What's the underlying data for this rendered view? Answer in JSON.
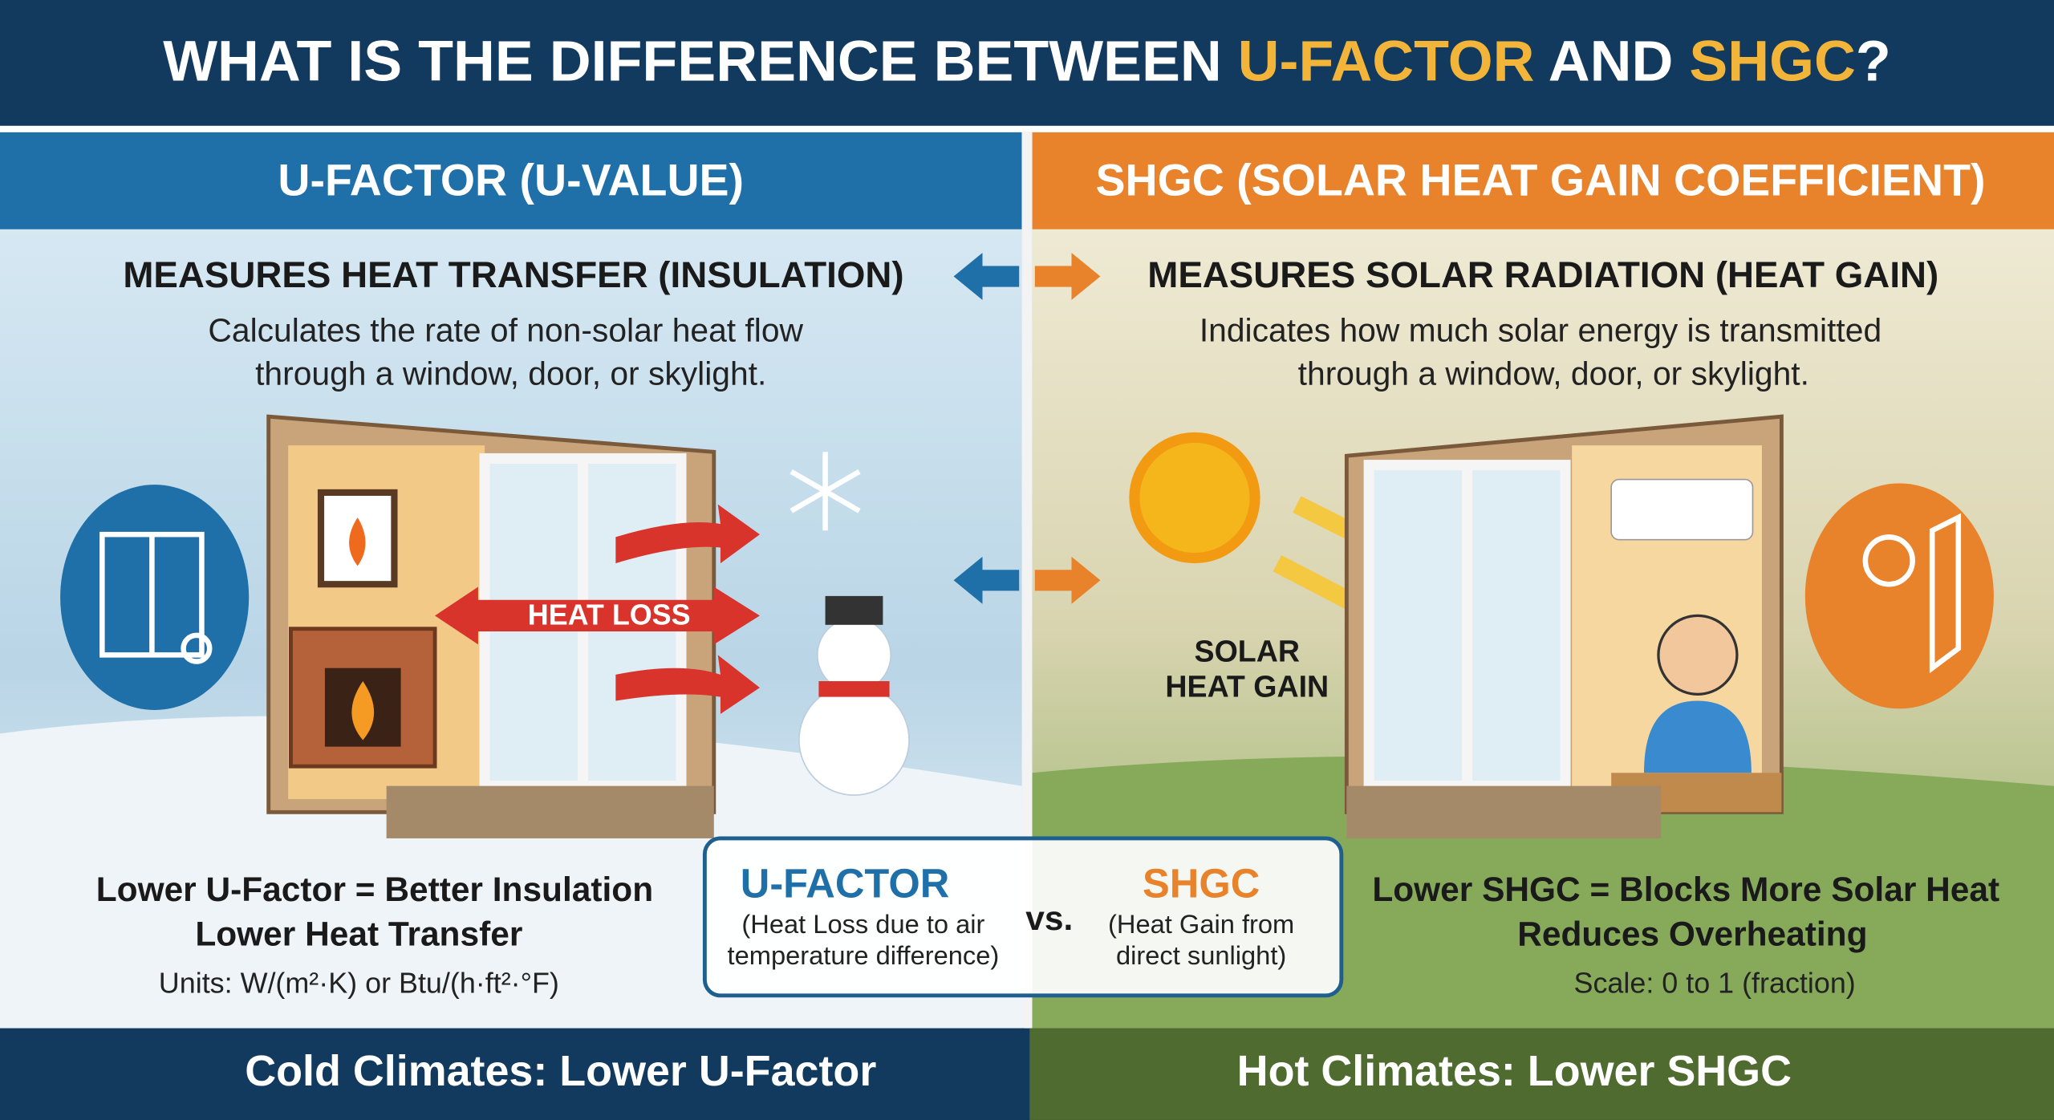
{
  "title": {
    "parts": [
      "WHAT IS THE DIFFERENCE BETWEEN ",
      "U-FACTOR",
      " AND ",
      "SHGC",
      "?"
    ]
  },
  "left": {
    "header": "U-FACTOR (U-VALUE)",
    "subtitle": "MEASURES HEAT TRANSFER (INSULATION)",
    "description": [
      "Calculates the rate of non-solar heat flow",
      "through a window, door, or skylight."
    ],
    "illustration_label": "HEAT LOSS",
    "summary": [
      "Lower U-Factor = Better Insulation",
      "Lower Heat Transfer"
    ],
    "units": "Units: W/(m²·K) or Btu/(h·ft²·°F)",
    "footer": "Cold Climates: Lower U-Factor"
  },
  "right": {
    "header": "SHGC (SOLAR HEAT GAIN COEFFICIENT)",
    "subtitle": "MEASURES SOLAR RADIATION (HEAT GAIN)",
    "description": [
      "Indicates how much solar energy is transmitted",
      "through a window, door, or skylight."
    ],
    "illustration_label": [
      "SOLAR",
      "HEAT GAIN"
    ],
    "summary": [
      "Lower SHGC = Blocks More Solar Heat",
      "Reduces Overheating"
    ],
    "scale": "Scale: 0 to 1 (fraction)",
    "footer": "Hot Climates: Lower SHGC"
  },
  "comparison": {
    "left_title": "U-FACTOR",
    "left_note": [
      "(Heat Loss due to air",
      "temperature difference)"
    ],
    "vs": "vs.",
    "right_title": "SHGC",
    "right_note": [
      "(Heat Gain from",
      "direct sunlight)"
    ]
  }
}
